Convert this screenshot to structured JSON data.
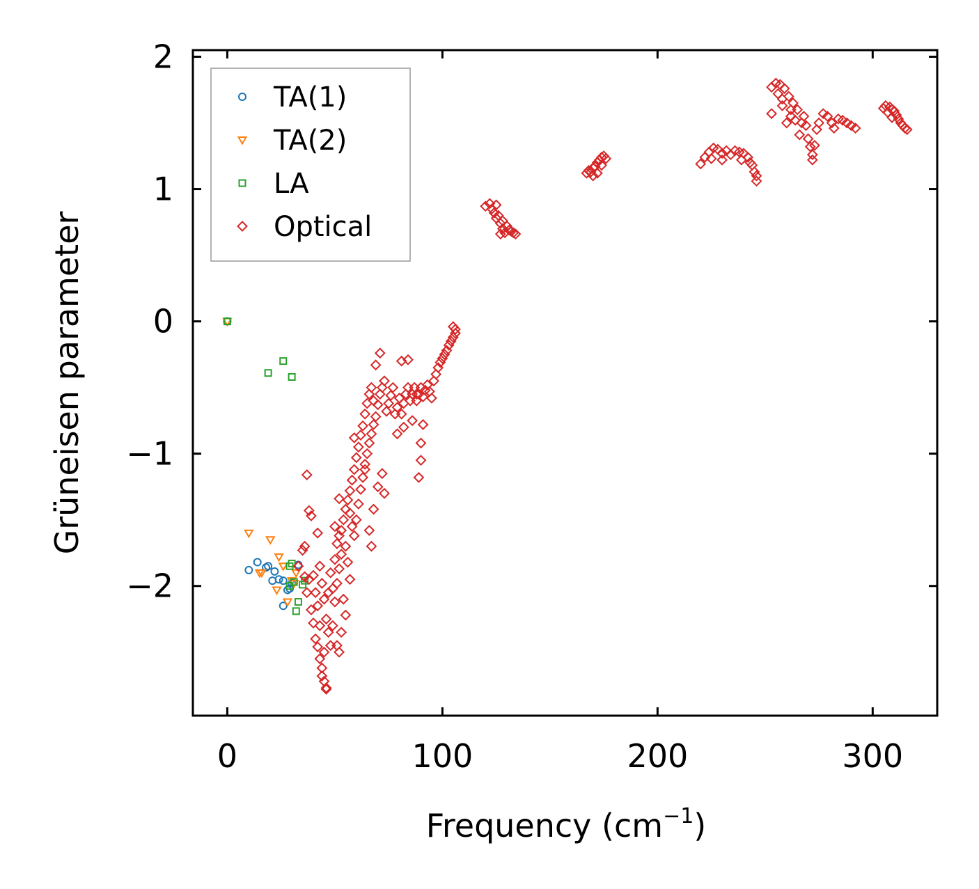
{
  "chart_data": {
    "type": "scatter",
    "title": "",
    "xlabel": "Frequency (cm",
    "xlabel_sup": "−1",
    "xlabel_close": ")",
    "ylabel": "Grüneisen parameter",
    "xlim": [
      -16,
      330
    ],
    "ylim": [
      -2.98,
      2.05
    ],
    "x_ticks": [
      0,
      100,
      200,
      300
    ],
    "x_tick_labels": [
      "0",
      "100",
      "200",
      "300"
    ],
    "y_ticks": [
      -2,
      -1,
      0,
      1,
      2
    ],
    "y_tick_labels": [
      "−2",
      "−1",
      "0",
      "1",
      "2"
    ],
    "legend_position": "top-left",
    "series": [
      {
        "name": "TA(1)",
        "marker": "circle",
        "color": "#1f77b4",
        "points": [
          [
            0,
            0
          ],
          [
            10,
            -1.88
          ],
          [
            14,
            -1.82
          ],
          [
            18,
            -1.86
          ],
          [
            19,
            -1.85
          ],
          [
            21,
            -1.96
          ],
          [
            22,
            -1.89
          ],
          [
            24,
            -1.95
          ],
          [
            26,
            -1.96
          ],
          [
            28,
            -2.03
          ],
          [
            29,
            -2.02
          ],
          [
            33,
            -1.84
          ],
          [
            26,
            -2.15
          ],
          [
            30,
            -1.98
          ]
        ]
      },
      {
        "name": "TA(2)",
        "marker": "triangle",
        "color": "#ff7f0e",
        "points": [
          [
            0,
            0
          ],
          [
            10,
            -1.6
          ],
          [
            20,
            -1.65
          ],
          [
            16,
            -1.9
          ],
          [
            15,
            -1.9
          ],
          [
            23,
            -2.03
          ],
          [
            24,
            -1.78
          ],
          [
            26,
            -1.85
          ],
          [
            28,
            -2.12
          ],
          [
            30,
            -1.96
          ],
          [
            31,
            -1.98
          ],
          [
            32,
            -1.9
          ]
        ]
      },
      {
        "name": "LA",
        "marker": "square",
        "color": "#2ca02c",
        "points": [
          [
            0,
            0
          ],
          [
            19,
            -0.39
          ],
          [
            26,
            -0.3
          ],
          [
            30,
            -0.42
          ],
          [
            29,
            -1.85
          ],
          [
            30,
            -1.83
          ],
          [
            31,
            -1.97
          ],
          [
            33,
            -2.12
          ],
          [
            32,
            -2.19
          ],
          [
            35,
            -1.99
          ],
          [
            36,
            -1.96
          ],
          [
            29,
            -2.0
          ]
        ]
      },
      {
        "name": "Optical",
        "marker": "diamond",
        "color": "#d62728",
        "points": [
          [
            33,
            -1.85
          ],
          [
            35,
            -1.73
          ],
          [
            36,
            -1.7
          ],
          [
            37,
            -1.16
          ],
          [
            38,
            -1.43
          ],
          [
            39,
            -1.47
          ],
          [
            42,
            -1.6
          ],
          [
            36,
            -1.93
          ],
          [
            38,
            -1.95
          ],
          [
            37,
            -2.05
          ],
          [
            39,
            -2.18
          ],
          [
            40,
            -2.28
          ],
          [
            41,
            -2.4
          ],
          [
            42,
            -2.46
          ],
          [
            43,
            -2.55
          ],
          [
            44,
            -2.62
          ],
          [
            44,
            -2.68
          ],
          [
            45,
            -2.72
          ],
          [
            46,
            -2.77
          ],
          [
            46,
            -2.78
          ],
          [
            45,
            -2.5
          ],
          [
            43,
            -2.3
          ],
          [
            42,
            -2.15
          ],
          [
            41,
            -2.05
          ],
          [
            40,
            -1.92
          ],
          [
            43,
            -1.85
          ],
          [
            44,
            -1.98
          ],
          [
            45,
            -2.1
          ],
          [
            46,
            -2.25
          ],
          [
            47,
            -2.35
          ],
          [
            48,
            -2.45
          ],
          [
            49,
            -2.3
          ],
          [
            50,
            -2.12
          ],
          [
            51,
            -1.98
          ],
          [
            52,
            -1.87
          ],
          [
            53,
            -1.76
          ],
          [
            52,
            -1.62
          ],
          [
            50,
            -1.55
          ],
          [
            52,
            -1.34
          ],
          [
            48,
            -1.9
          ],
          [
            47,
            -2.05
          ],
          [
            49,
            -2.02
          ],
          [
            50,
            -1.8
          ],
          [
            51,
            -1.68
          ],
          [
            53,
            -1.58
          ],
          [
            54,
            -1.5
          ],
          [
            55,
            -1.42
          ],
          [
            56,
            -1.35
          ],
          [
            57,
            -1.28
          ],
          [
            58,
            -1.2
          ],
          [
            59,
            -1.12
          ],
          [
            60,
            -1.03
          ],
          [
            61,
            -0.95
          ],
          [
            62,
            -0.86
          ],
          [
            63,
            -0.79
          ],
          [
            64,
            -0.7
          ],
          [
            65,
            -0.62
          ],
          [
            66,
            -0.55
          ],
          [
            67,
            -0.5
          ],
          [
            68,
            -0.6
          ],
          [
            69,
            -0.72
          ],
          [
            70,
            -0.63
          ],
          [
            71,
            -0.55
          ],
          [
            72,
            -0.5
          ],
          [
            73,
            -0.45
          ],
          [
            74,
            -0.68
          ],
          [
            75,
            -0.62
          ],
          [
            76,
            -0.56
          ],
          [
            77,
            -0.5
          ],
          [
            78,
            -0.7
          ],
          [
            79,
            -0.65
          ],
          [
            80,
            -0.58
          ],
          [
            81,
            -0.7
          ],
          [
            82,
            -0.62
          ],
          [
            83,
            -0.55
          ],
          [
            84,
            -0.5
          ],
          [
            85,
            -0.6
          ],
          [
            86,
            -0.55
          ],
          [
            87,
            -0.5
          ],
          [
            88,
            -0.6
          ],
          [
            89,
            -0.55
          ],
          [
            90,
            -0.5
          ],
          [
            91,
            -0.57
          ],
          [
            92,
            -0.52
          ],
          [
            93,
            -0.48
          ],
          [
            94,
            -0.53
          ],
          [
            95,
            -0.58
          ],
          [
            96,
            -0.45
          ],
          [
            97,
            -0.4
          ],
          [
            98,
            -0.35
          ],
          [
            99,
            -0.31
          ],
          [
            100,
            -0.28
          ],
          [
            101,
            -0.25
          ],
          [
            102,
            -0.22
          ],
          [
            103,
            -0.18
          ],
          [
            104,
            -0.15
          ],
          [
            105,
            -0.12
          ],
          [
            106,
            -0.09
          ],
          [
            106,
            -0.06
          ],
          [
            105,
            -0.04
          ],
          [
            57,
            -1.45
          ],
          [
            58,
            -1.55
          ],
          [
            59,
            -1.62
          ],
          [
            60,
            -1.5
          ],
          [
            61,
            -1.38
          ],
          [
            62,
            -1.27
          ],
          [
            63,
            -1.18
          ],
          [
            64,
            -1.08
          ],
          [
            65,
            -1.0
          ],
          [
            66,
            -0.92
          ],
          [
            67,
            -0.85
          ],
          [
            68,
            -0.78
          ],
          [
            55,
            -1.7
          ],
          [
            56,
            -1.82
          ],
          [
            57,
            -1.95
          ],
          [
            54,
            -2.1
          ],
          [
            55,
            -2.22
          ],
          [
            53,
            -2.35
          ],
          [
            51,
            -2.45
          ],
          [
            52,
            -2.5
          ],
          [
            59,
            -0.88
          ],
          [
            64,
            -1.12
          ],
          [
            69,
            -0.33
          ],
          [
            71,
            -0.24
          ],
          [
            81,
            -0.3
          ],
          [
            84,
            -0.29
          ],
          [
            88,
            -0.55
          ],
          [
            90,
            -1.05
          ],
          [
            89,
            -1.18
          ],
          [
            91,
            -0.78
          ],
          [
            90,
            -0.92
          ],
          [
            79,
            -0.85
          ],
          [
            82,
            -0.8
          ],
          [
            86,
            -0.75
          ],
          [
            72,
            -1.15
          ],
          [
            73,
            -1.3
          ],
          [
            70,
            -1.25
          ],
          [
            68,
            -1.42
          ],
          [
            66,
            -1.58
          ],
          [
            67,
            -1.7
          ],
          [
            120,
            0.87
          ],
          [
            122,
            0.89
          ],
          [
            123,
            0.85
          ],
          [
            124,
            0.82
          ],
          [
            125,
            0.88
          ],
          [
            126,
            0.8
          ],
          [
            127,
            0.74
          ],
          [
            128,
            0.7
          ],
          [
            129,
            0.67
          ],
          [
            130,
            0.72
          ],
          [
            131,
            0.69
          ],
          [
            132,
            0.68
          ],
          [
            133,
            0.67
          ],
          [
            134,
            0.66
          ],
          [
            127,
            0.66
          ],
          [
            125,
            0.78
          ],
          [
            128,
            0.76
          ],
          [
            167,
            1.12
          ],
          [
            168,
            1.14
          ],
          [
            169,
            1.13
          ],
          [
            170,
            1.16
          ],
          [
            171,
            1.17
          ],
          [
            172,
            1.2
          ],
          [
            173,
            1.22
          ],
          [
            174,
            1.24
          ],
          [
            175,
            1.25
          ],
          [
            176,
            1.23
          ],
          [
            170,
            1.1
          ],
          [
            172,
            1.12
          ],
          [
            174,
            1.18
          ],
          [
            220,
            1.19
          ],
          [
            222,
            1.24
          ],
          [
            224,
            1.28
          ],
          [
            226,
            1.31
          ],
          [
            228,
            1.3
          ],
          [
            230,
            1.27
          ],
          [
            232,
            1.29
          ],
          [
            234,
            1.26
          ],
          [
            236,
            1.29
          ],
          [
            238,
            1.28
          ],
          [
            240,
            1.27
          ],
          [
            242,
            1.24
          ],
          [
            244,
            1.18
          ],
          [
            245,
            1.13
          ],
          [
            246,
            1.06
          ],
          [
            225,
            1.23
          ],
          [
            230,
            1.22
          ],
          [
            239,
            1.22
          ],
          [
            243,
            1.2
          ],
          [
            246,
            1.1
          ],
          [
            253,
            1.77
          ],
          [
            255,
            1.8
          ],
          [
            257,
            1.79
          ],
          [
            259,
            1.76
          ],
          [
            261,
            1.7
          ],
          [
            263,
            1.65
          ],
          [
            265,
            1.6
          ],
          [
            262,
            1.55
          ],
          [
            260,
            1.5
          ],
          [
            253,
            1.57
          ],
          [
            258,
            1.63
          ],
          [
            266,
            1.41
          ],
          [
            268,
            1.55
          ],
          [
            269,
            1.48
          ],
          [
            270,
            1.38
          ],
          [
            271,
            1.32
          ],
          [
            272,
            1.26
          ],
          [
            272,
            1.22
          ],
          [
            273,
            1.33
          ],
          [
            274,
            1.45
          ],
          [
            275,
            1.5
          ],
          [
            277,
            1.57
          ],
          [
            279,
            1.55
          ],
          [
            281,
            1.5
          ],
          [
            282,
            1.46
          ],
          [
            284,
            1.53
          ],
          [
            286,
            1.52
          ],
          [
            288,
            1.5
          ],
          [
            290,
            1.48
          ],
          [
            292,
            1.46
          ],
          [
            262,
            1.6
          ],
          [
            264,
            1.52
          ],
          [
            267,
            1.5
          ],
          [
            256,
            1.72
          ],
          [
            258,
            1.68
          ],
          [
            305,
            1.61
          ],
          [
            306,
            1.63
          ],
          [
            308,
            1.62
          ],
          [
            309,
            1.6
          ],
          [
            310,
            1.59
          ],
          [
            311,
            1.56
          ],
          [
            312,
            1.53
          ],
          [
            313,
            1.5
          ],
          [
            314,
            1.48
          ],
          [
            315,
            1.46
          ],
          [
            316,
            1.45
          ],
          [
            307,
            1.58
          ],
          [
            309,
            1.54
          ]
        ]
      }
    ]
  }
}
